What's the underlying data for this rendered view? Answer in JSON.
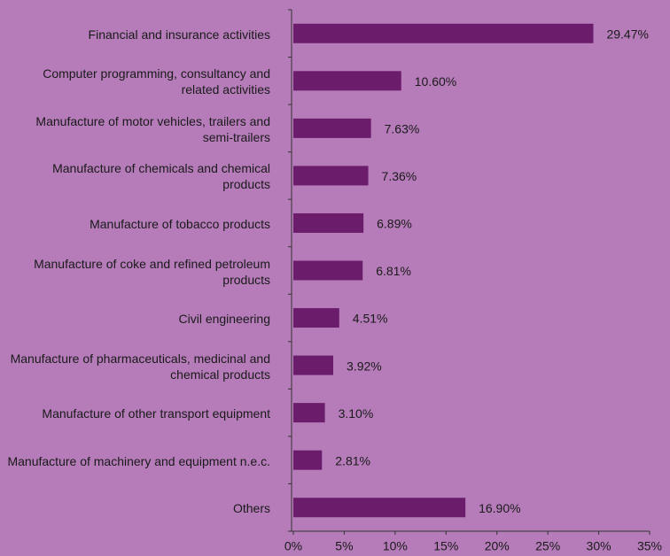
{
  "chart_data": {
    "type": "bar",
    "orientation": "horizontal",
    "categories": [
      "Financial and insurance activities",
      "Computer programming, consultancy and related activities",
      "Manufacture of motor vehicles, trailers and semi-trailers",
      "Manufacture of chemicals and chemical products",
      "Manufacture of tobacco products",
      "Manufacture of coke and refined petroleum products",
      "Civil engineering",
      "Manufacture of pharmaceuticals, medicinal and chemical products",
      "Manufacture of other transport equipment",
      "Manufacture of machinery and equipment n.e.c.",
      "Others"
    ],
    "values": [
      29.47,
      10.6,
      7.63,
      7.36,
      6.89,
      6.81,
      4.51,
      3.92,
      3.1,
      2.81,
      16.9
    ],
    "value_labels": [
      "29.47%",
      "10.60%",
      "7.63%",
      "7.36%",
      "6.89%",
      "6.81%",
      "4.51%",
      "3.92%",
      "3.10%",
      "2.81%",
      "16.90%"
    ],
    "color": "#6b1d6c",
    "xlim": [
      0,
      35
    ],
    "xticks": [
      {
        "value": 0,
        "label": "0%"
      },
      {
        "value": 5,
        "label": "5%"
      },
      {
        "value": 10,
        "label": "10%"
      },
      {
        "value": 15,
        "label": "15%"
      },
      {
        "value": 20,
        "label": "20%"
      },
      {
        "value": 25,
        "label": "25%"
      },
      {
        "value": 30,
        "label": "30%"
      },
      {
        "value": 35,
        "label": "35%"
      }
    ],
    "grid": false
  }
}
